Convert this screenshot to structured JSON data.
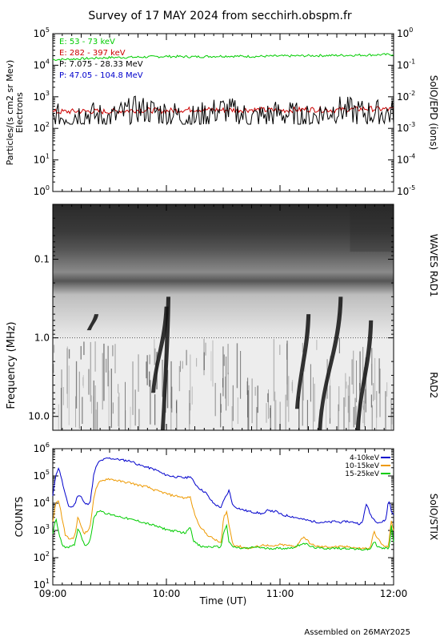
{
  "header": {
    "title": "Survey of 17 MAY 2024 from secchirh.obspm.fr",
    "footer": "Assembled on 26MAY2025"
  },
  "colors": {
    "green": "#00cc00",
    "red": "#cc0000",
    "black": "#000000",
    "blue": "#0000cc",
    "orange": "#ee9900",
    "stix_green": "#00cc00"
  },
  "chart_data": [
    {
      "type": "line",
      "title": "",
      "ylabel": "Particles/(s cm2 sr Mev)",
      "ylabel2": "Electrons",
      "right_label": "SolO/EPD (ions)",
      "yscale": "log",
      "ylim": [
        1,
        100000
      ],
      "y_ticks": [
        "10^0",
        "10^1",
        "10^2",
        "10^3",
        "10^4",
        "10^5"
      ],
      "y2lim": [
        1e-05,
        1
      ],
      "y2_ticks": [
        "10^-5",
        "10^-4",
        "10^-3",
        "10^-2",
        "10^-1",
        "10^0"
      ],
      "xlim": [
        "09:00",
        "12:00"
      ],
      "series": [
        {
          "name": "E: 53 - 73 keV",
          "color": "green",
          "axis": "left",
          "x": [
            "09:00",
            "09:15",
            "09:30",
            "09:45",
            "10:00",
            "10:15",
            "10:30",
            "10:45",
            "11:00",
            "11:15",
            "11:30",
            "11:45",
            "12:00"
          ],
          "y": [
            15000,
            16000,
            17500,
            18000,
            19000,
            18500,
            19500,
            19000,
            19500,
            20000,
            20500,
            21000,
            22000
          ]
        },
        {
          "name": "E: 282 - 397 keV",
          "color": "red",
          "axis": "left",
          "x": [
            "09:00",
            "09:15",
            "09:30",
            "09:45",
            "10:00",
            "10:15",
            "10:30",
            "10:45",
            "11:00",
            "11:15",
            "11:30",
            "11:45",
            "12:00"
          ],
          "y": [
            330,
            350,
            340,
            380,
            360,
            400,
            380,
            390,
            370,
            400,
            380,
            420,
            400
          ]
        },
        {
          "name": "P: 7.075 - 28.33 MeV",
          "color": "black",
          "axis": "right",
          "x": [
            "09:00",
            "09:15",
            "09:30",
            "09:45",
            "10:00",
            "10:15",
            "10:30",
            "10:45",
            "11:00",
            "11:15",
            "11:30",
            "11:45",
            "12:00"
          ],
          "y": [
            0.002,
            0.003,
            0.002,
            0.004,
            0.003,
            0.002,
            0.004,
            0.002,
            0.003,
            0.002,
            0.004,
            0.003,
            0.003
          ]
        },
        {
          "name": "P: 47.05 - 104.8 MeV",
          "color": "blue",
          "axis": "right",
          "x": [],
          "y": []
        }
      ]
    },
    {
      "type": "heatmap",
      "ylabel": "Frequency (MHz)",
      "right_label_top": "WAVES RAD1",
      "right_label_bottom": "RAD2",
      "yscale": "log",
      "y_inverted": true,
      "ylim": [
        0.02,
        15
      ],
      "y_ticks": [
        "0.1",
        "1.0",
        "10.0"
      ],
      "xlim": [
        "09:00",
        "12:00"
      ],
      "bursts": [
        {
          "start": "09:57",
          "end": "10:00",
          "f_high_mhz": 0.3,
          "f_low_mhz": 15
        },
        {
          "start": "09:52",
          "end": "09:59",
          "f_high_mhz": 0.4,
          "f_low_mhz": 5
        },
        {
          "start": "11:08",
          "end": "11:14",
          "f_high_mhz": 0.5,
          "f_low_mhz": 8
        },
        {
          "start": "11:20",
          "end": "11:31",
          "f_high_mhz": 0.3,
          "f_low_mhz": 15
        },
        {
          "start": "11:40",
          "end": "11:47",
          "f_high_mhz": 0.6,
          "f_low_mhz": 15
        },
        {
          "start": "09:18",
          "end": "09:22",
          "f_high_mhz": 0.5,
          "f_low_mhz": 0.8
        }
      ]
    },
    {
      "type": "line",
      "ylabel": "COUNTS",
      "right_label": "SolO/STIX",
      "xlabel": "Time (UT)",
      "yscale": "log",
      "ylim": [
        10,
        1000000
      ],
      "y_ticks": [
        "10^1",
        "10^2",
        "10^3",
        "10^4",
        "10^5",
        "10^6"
      ],
      "xlim": [
        "09:00",
        "12:00"
      ],
      "x_ticks": [
        "09:00",
        "10:00",
        "11:00",
        "12:00"
      ],
      "series": [
        {
          "name": "4-10keV",
          "color": "blue",
          "x": [
            0,
            4,
            8,
            12,
            16,
            20,
            24,
            28,
            32,
            36,
            40,
            44,
            48,
            52,
            56,
            60,
            70,
            80,
            90,
            100,
            105,
            110,
            115,
            118,
            122,
            128,
            135,
            140,
            150,
            160,
            170,
            175,
            180,
            185,
            190,
            195,
            200,
            205,
            210,
            215,
            218,
            222,
            225,
            230,
            240,
            250,
            260,
            270,
            275,
            280,
            285,
            290,
            295,
            300,
            310,
            320,
            330,
            340,
            350,
            355,
            360,
            365,
            370,
            375,
            380,
            385,
            390,
            395,
            400,
            405,
            410,
            415,
            420,
            425,
            428,
            430,
            432,
            435
          ],
          "y": [
            18000,
            120000,
            200000,
            60000,
            20000,
            8000,
            7000,
            9000,
            20000,
            18000,
            10000,
            9000,
            12000,
            100000,
            250000,
            350000,
            450000,
            420000,
            380000,
            350000,
            300000,
            250000,
            230000,
            220000,
            200000,
            180000,
            150000,
            120000,
            100000,
            90000,
            85000,
            100000,
            60000,
            40000,
            30000,
            25000,
            15000,
            10000,
            8000,
            7000,
            12000,
            20000,
            30000,
            8000,
            6000,
            5000,
            4500,
            4000,
            6000,
            5000,
            5000,
            4000,
            3500,
            3500,
            3000,
            2500,
            2200,
            2000,
            2000,
            2000,
            2200,
            2000,
            2000,
            2200,
            2000,
            2000,
            1800,
            1800,
            10000,
            4000,
            2500,
            2000,
            2000,
            2500,
            10000,
            12000,
            5000,
            4000
          ]
        },
        {
          "name": "10-15keV",
          "color": "orange",
          "x": [
            0,
            4,
            8,
            12,
            16,
            20,
            24,
            28,
            32,
            36,
            40,
            44,
            48,
            52,
            56,
            60,
            70,
            80,
            90,
            100,
            110,
            120,
            130,
            140,
            150,
            160,
            170,
            175,
            180,
            185,
            190,
            195,
            200,
            205,
            210,
            215,
            218,
            222,
            225,
            230,
            240,
            250,
            260,
            270,
            280,
            290,
            300,
            310,
            320,
            330,
            340,
            350,
            360,
            370,
            380,
            390,
            400,
            405,
            410,
            415,
            420,
            425,
            428,
            430,
            432,
            435
          ],
          "y": [
            2000,
            11000,
            12000,
            2500,
            700,
            500,
            500,
            600,
            3000,
            1500,
            800,
            900,
            1500,
            15000,
            40000,
            60000,
            80000,
            70000,
            60000,
            55000,
            45000,
            40000,
            30000,
            25000,
            20000,
            18000,
            15000,
            18000,
            5000,
            2000,
            1200,
            800,
            600,
            500,
            400,
            350,
            3000,
            5000,
            1500,
            300,
            250,
            220,
            250,
            300,
            250,
            300,
            280,
            250,
            600,
            300,
            250,
            250,
            250,
            250,
            250,
            220,
            220,
            220,
            900,
            500,
            300,
            250,
            250,
            600,
            2500,
            1000
          ]
        },
        {
          "name": "15-25keV",
          "color": "stix_green",
          "x": [
            0,
            4,
            8,
            12,
            16,
            20,
            24,
            28,
            32,
            36,
            40,
            44,
            48,
            52,
            56,
            60,
            70,
            80,
            90,
            100,
            110,
            120,
            130,
            140,
            150,
            160,
            170,
            175,
            180,
            185,
            190,
            195,
            200,
            205,
            210,
            215,
            218,
            222,
            225,
            230,
            240,
            250,
            260,
            270,
            280,
            290,
            300,
            310,
            320,
            330,
            340,
            350,
            360,
            370,
            380,
            390,
            400,
            405,
            410,
            415,
            420,
            425,
            428,
            430,
            432,
            435
          ],
          "y": [
            700,
            3000,
            700,
            300,
            250,
            250,
            250,
            300,
            1200,
            700,
            300,
            300,
            500,
            2500,
            4500,
            5500,
            4000,
            3500,
            3000,
            2500,
            2200,
            1800,
            1500,
            1200,
            1000,
            900,
            800,
            1500,
            400,
            300,
            250,
            250,
            250,
            250,
            250,
            250,
            900,
            1500,
            350,
            250,
            220,
            220,
            250,
            220,
            220,
            220,
            220,
            250,
            350,
            250,
            220,
            220,
            220,
            220,
            220,
            200,
            200,
            200,
            400,
            250,
            220,
            220,
            220,
            300,
            1500,
            400
          ]
        }
      ]
    }
  ]
}
